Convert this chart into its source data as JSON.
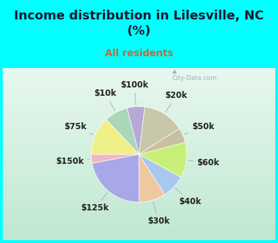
{
  "title": "Income distribution in Lilesville, NC\n(%)",
  "subtitle": "All residents",
  "labels": [
    "$100k",
    "$10k",
    "$75k",
    "$150k",
    "$125k",
    "$30k",
    "$40k",
    "$60k",
    "$50k",
    "$20k"
  ],
  "sizes": [
    6,
    8,
    13,
    3,
    22,
    9,
    8,
    12,
    5,
    14
  ],
  "colors": [
    "#b8a8d8",
    "#a8d8b8",
    "#f0f088",
    "#f0b8c0",
    "#a8a8e8",
    "#f0c8a0",
    "#a8c8f0",
    "#c8f078",
    "#c8c0a0",
    "#c8c8a8"
  ],
  "bg_color": "#00ffff",
  "chart_bg": "#d8f0e0",
  "title_color": "#1a1a2e",
  "subtitle_color": "#cc6633",
  "title_fontsize": 13,
  "subtitle_fontsize": 10,
  "label_fontsize": 8.5,
  "startangle": 83
}
